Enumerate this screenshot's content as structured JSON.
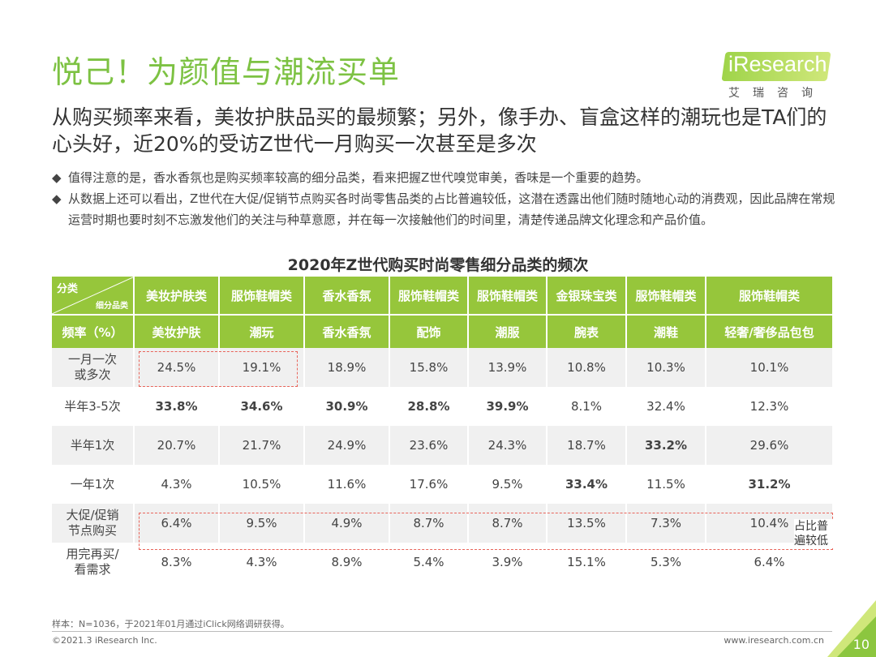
{
  "title": "悦己！为颜值与潮流买单",
  "logo": {
    "brand": "iResearch",
    "sub": "艾瑞咨询"
  },
  "subtitle": "从购买频率来看，美妆护肤品买的最频繁；另外，像手办、盲盒这样的潮玩也是TA们的心头好，近20%的受访Z世代一月购买一次甚至是多次",
  "bullets": [
    "值得注意的是，香水香氛也是购买频率较高的细分品类，看来把握Z世代嗅觉审美，香味是一个重要的趋势。",
    "从数据上还可以看出，Z世代在大促/促销节点购买各时尚零售品类的占比普遍较低，这潜在透露出他们随时随地心动的消费观，因此品牌在常规运营时期也要时刻不忘激发他们的关注与种草意愿，并在每一次接触他们的时间里，清楚传递品牌文化理念和产品价值。"
  ],
  "bullet_mark": "◆",
  "table": {
    "title": "2020年Z世代购买时尚零售细分品类的频次",
    "corner_top": "分类",
    "corner_bottom": "细分品类",
    "freq_label": "频率（%）",
    "categories": [
      "美妆护肤类",
      "服饰鞋帽类",
      "香水香氛",
      "服饰鞋帽类",
      "服饰鞋帽类",
      "金银珠宝类",
      "服饰鞋帽类",
      "服饰鞋帽类"
    ],
    "subcategories": [
      "美妆护肤",
      "潮玩",
      "香水香氛",
      "配饰",
      "潮服",
      "腕表",
      "潮鞋",
      "轻奢/奢侈品包包"
    ],
    "rows": [
      {
        "label": "一月一次或多次",
        "values": [
          "24.5%",
          "19.1%",
          "18.9%",
          "15.8%",
          "13.9%",
          "10.8%",
          "10.3%",
          "10.1%"
        ]
      },
      {
        "label": "半年3-5次",
        "values": [
          "33.8%",
          "34.6%",
          "30.9%",
          "28.8%",
          "39.9%",
          "8.1%",
          "32.4%",
          "12.3%"
        ]
      },
      {
        "label": "半年1次",
        "values": [
          "20.7%",
          "21.7%",
          "24.9%",
          "23.6%",
          "24.3%",
          "18.7%",
          "33.2%",
          "29.6%"
        ]
      },
      {
        "label": "一年1次",
        "values": [
          "4.3%",
          "10.5%",
          "11.6%",
          "17.6%",
          "9.5%",
          "33.4%",
          "11.5%",
          "31.2%"
        ]
      },
      {
        "label": "大促/促销节点购买",
        "values": [
          "6.4%",
          "9.5%",
          "4.9%",
          "8.7%",
          "8.7%",
          "13.5%",
          "7.3%",
          "10.4%"
        ]
      },
      {
        "label": "用完再买/看需求",
        "values": [
          "8.3%",
          "4.3%",
          "8.9%",
          "5.4%",
          "3.9%",
          "15.1%",
          "5.3%",
          "6.4%"
        ]
      }
    ],
    "note": "占比普遍较低"
  },
  "footer": {
    "sample": "样本：N=1036，于2021年01月通过iClick网络调研获得。",
    "copyright": "©2021.3 iResearch Inc.",
    "url": "www.iresearch.com.cn",
    "page": "10"
  },
  "colors": {
    "accent": "#96c63b",
    "title": "#7dc243",
    "dash": "#e8645a"
  }
}
